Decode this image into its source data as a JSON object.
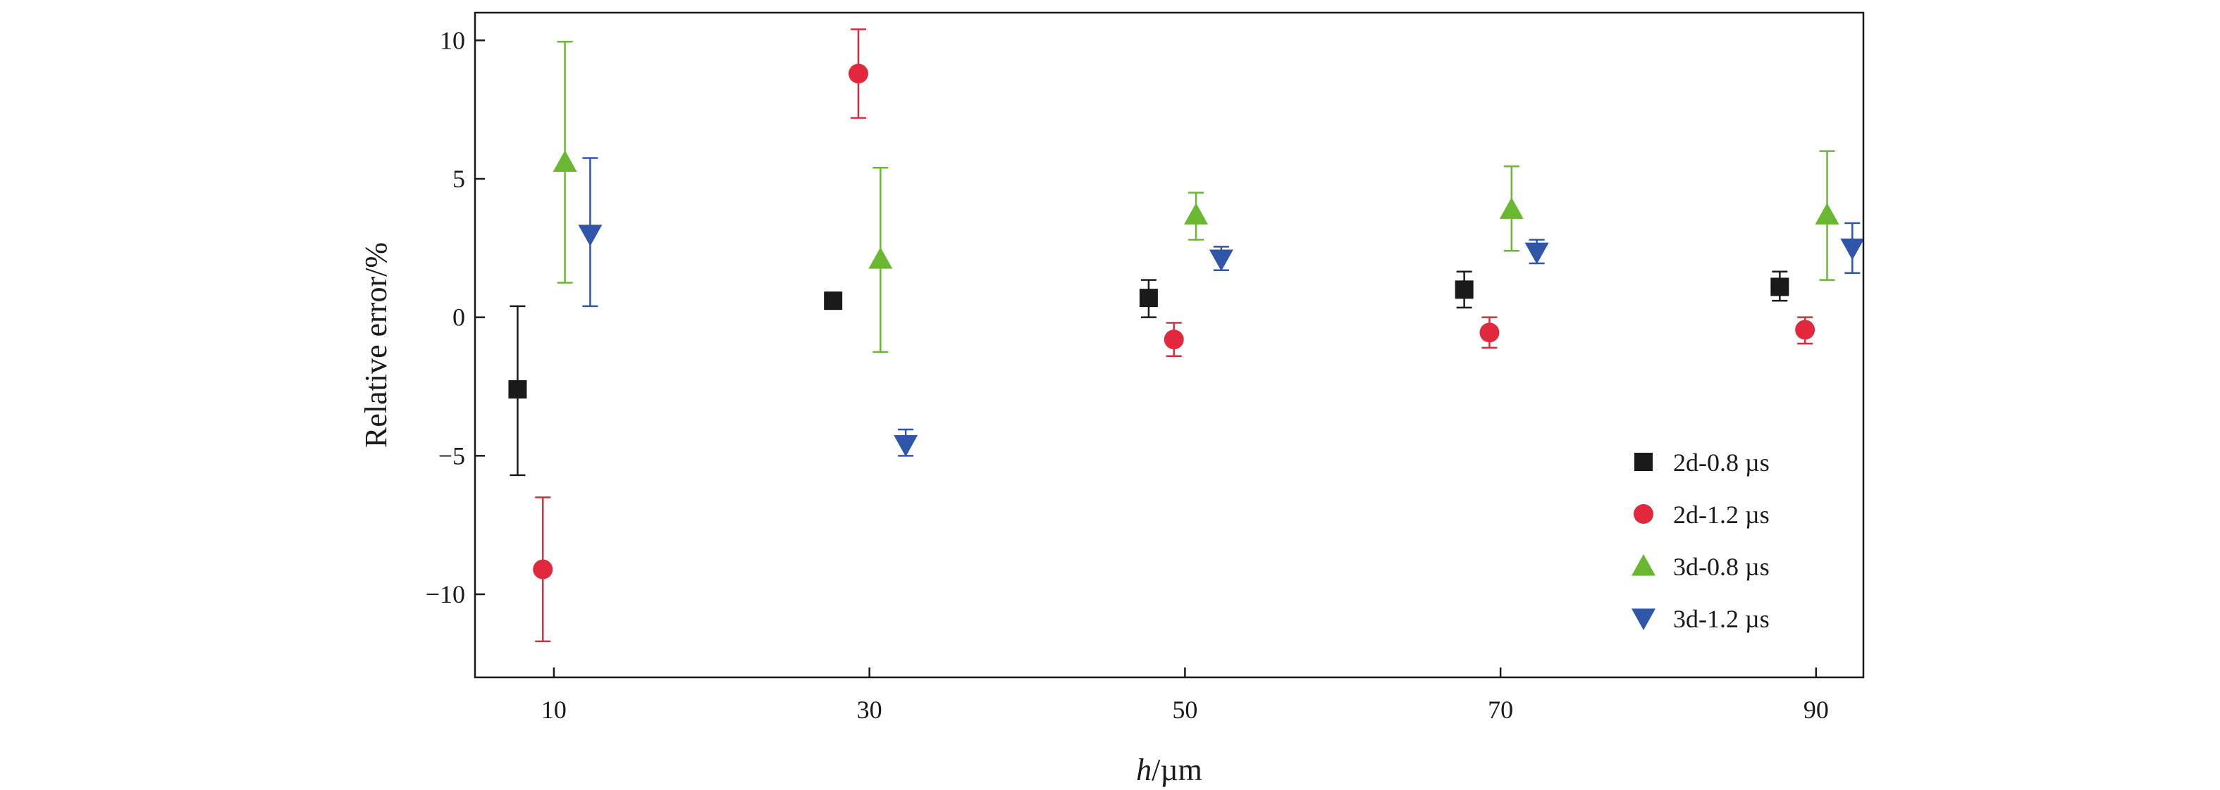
{
  "chart_data": {
    "type": "scatter",
    "xlabel_italic": "h",
    "xlabel_rest": "/µm",
    "ylabel": "Relative error/%",
    "xlim": [
      5,
      93
    ],
    "ylim": [
      -13,
      11
    ],
    "xticks": [
      10,
      30,
      50,
      70,
      90
    ],
    "yticks": [
      10,
      5,
      0,
      -5,
      -10
    ],
    "ytick_labels": [
      "10",
      "5",
      "0",
      "−5",
      "−10"
    ],
    "legend_position": "bottom-right",
    "grid": false,
    "series": [
      {
        "name": "2d-0.8 µs",
        "marker": "square",
        "color": "#1a1a1a",
        "points": [
          {
            "x": 7.7,
            "y": -2.6,
            "low": -5.7,
            "high": 0.4
          },
          {
            "x": 27.7,
            "y": 0.6,
            "low": 0.3,
            "high": 0.9
          },
          {
            "x": 47.7,
            "y": 0.7,
            "low": 0.0,
            "high": 1.35
          },
          {
            "x": 67.7,
            "y": 1.0,
            "low": 0.35,
            "high": 1.65
          },
          {
            "x": 87.7,
            "y": 1.1,
            "low": 0.6,
            "high": 1.65
          }
        ]
      },
      {
        "name": "2d-1.2 µs",
        "marker": "circle",
        "color": "#e2283c",
        "points": [
          {
            "x": 9.3,
            "y": -9.1,
            "low": -11.7,
            "high": -6.5
          },
          {
            "x": 29.3,
            "y": 8.8,
            "low": 7.2,
            "high": 10.4
          },
          {
            "x": 49.3,
            "y": -0.8,
            "low": -1.4,
            "high": -0.2
          },
          {
            "x": 69.3,
            "y": -0.55,
            "low": -1.1,
            "high": 0.0
          },
          {
            "x": 89.3,
            "y": -0.45,
            "low": -0.95,
            "high": 0.0
          }
        ]
      },
      {
        "name": "3d-0.8 µs",
        "marker": "triangle-up",
        "color": "#6ab832",
        "points": [
          {
            "x": 10.7,
            "y": 5.6,
            "low": 1.25,
            "high": 9.95
          },
          {
            "x": 30.7,
            "y": 2.1,
            "low": -1.25,
            "high": 5.4
          },
          {
            "x": 50.7,
            "y": 3.7,
            "low": 2.8,
            "high": 4.5
          },
          {
            "x": 70.7,
            "y": 3.9,
            "low": 2.4,
            "high": 5.45
          },
          {
            "x": 90.7,
            "y": 3.7,
            "low": 1.35,
            "high": 6.0
          }
        ]
      },
      {
        "name": "3d-1.2 µs",
        "marker": "triangle-down",
        "color": "#2f56a8",
        "points": [
          {
            "x": 12.3,
            "y": 3.0,
            "low": 0.4,
            "high": 5.75
          },
          {
            "x": 32.3,
            "y": -4.6,
            "low": -5.0,
            "high": -4.05
          },
          {
            "x": 52.3,
            "y": 2.1,
            "low": 1.7,
            "high": 2.55
          },
          {
            "x": 72.3,
            "y": 2.35,
            "low": 1.95,
            "high": 2.8
          },
          {
            "x": 92.3,
            "y": 2.5,
            "low": 1.6,
            "high": 3.4
          }
        ]
      }
    ]
  }
}
